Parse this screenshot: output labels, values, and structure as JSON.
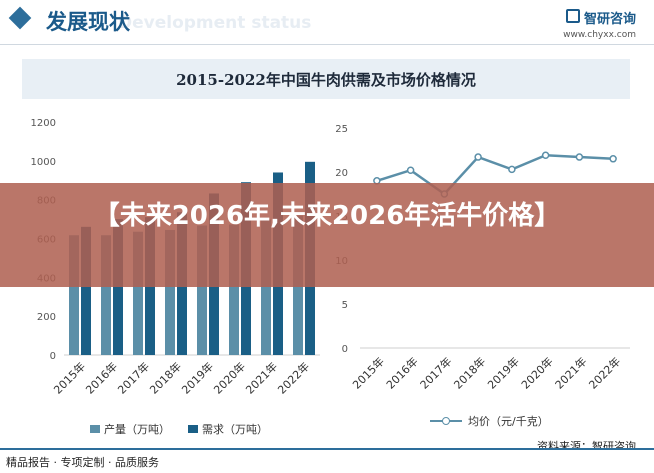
{
  "header": {
    "title": "发展现状",
    "subtitle_en": "Development status",
    "brand_name": "智研咨询",
    "brand_url": "www.chyxx.com"
  },
  "banner": {
    "text": "【未来2026年,未来2026年活牛价格】"
  },
  "footer": {
    "left_text": "精品报告 · 专项定制 · 品质服务",
    "source_text": "资料来源：智研咨询"
  },
  "colors": {
    "production": "#5b8fa8",
    "demand": "#1a5f86",
    "price_line": "#5b8fa8",
    "banner": "#af5f50",
    "accent": "#1b5a8a"
  },
  "chart_data": [
    {
      "type": "bar",
      "title": "2015-2022年中国牛肉供需及市场价格情况",
      "categories": [
        "2015年",
        "2016年",
        "2017年",
        "2018年",
        "2019年",
        "2020年",
        "2021年",
        "2022年"
      ],
      "series": [
        {
          "name": "产量（万吨）",
          "values": [
            617,
            617,
            635,
            644,
            667,
            672,
            698,
            718
          ]
        },
        {
          "name": "需求（万吨）",
          "values": [
            660,
            700,
            710,
            735,
            832,
            890,
            940,
            995
          ]
        }
      ],
      "ylim": [
        0,
        1200
      ],
      "yticks": [
        "0",
        "200",
        "400",
        "600",
        "800",
        "1000",
        "1200"
      ],
      "xlabel": "",
      "ylabel": ""
    },
    {
      "type": "line",
      "categories": [
        "2015年",
        "2016年",
        "2017年",
        "2018年",
        "2019年",
        "2020年",
        "2021年",
        "2022年"
      ],
      "series": [
        {
          "name": "均价（元/千克）",
          "values": [
            19,
            20.2,
            17.5,
            21.7,
            20.3,
            21.9,
            21.7,
            21.5
          ]
        }
      ],
      "ylim": [
        0,
        25
      ],
      "yticks": [
        "0",
        "5",
        "10",
        "15",
        "20",
        "25"
      ],
      "xlabel": "",
      "ylabel": ""
    }
  ]
}
